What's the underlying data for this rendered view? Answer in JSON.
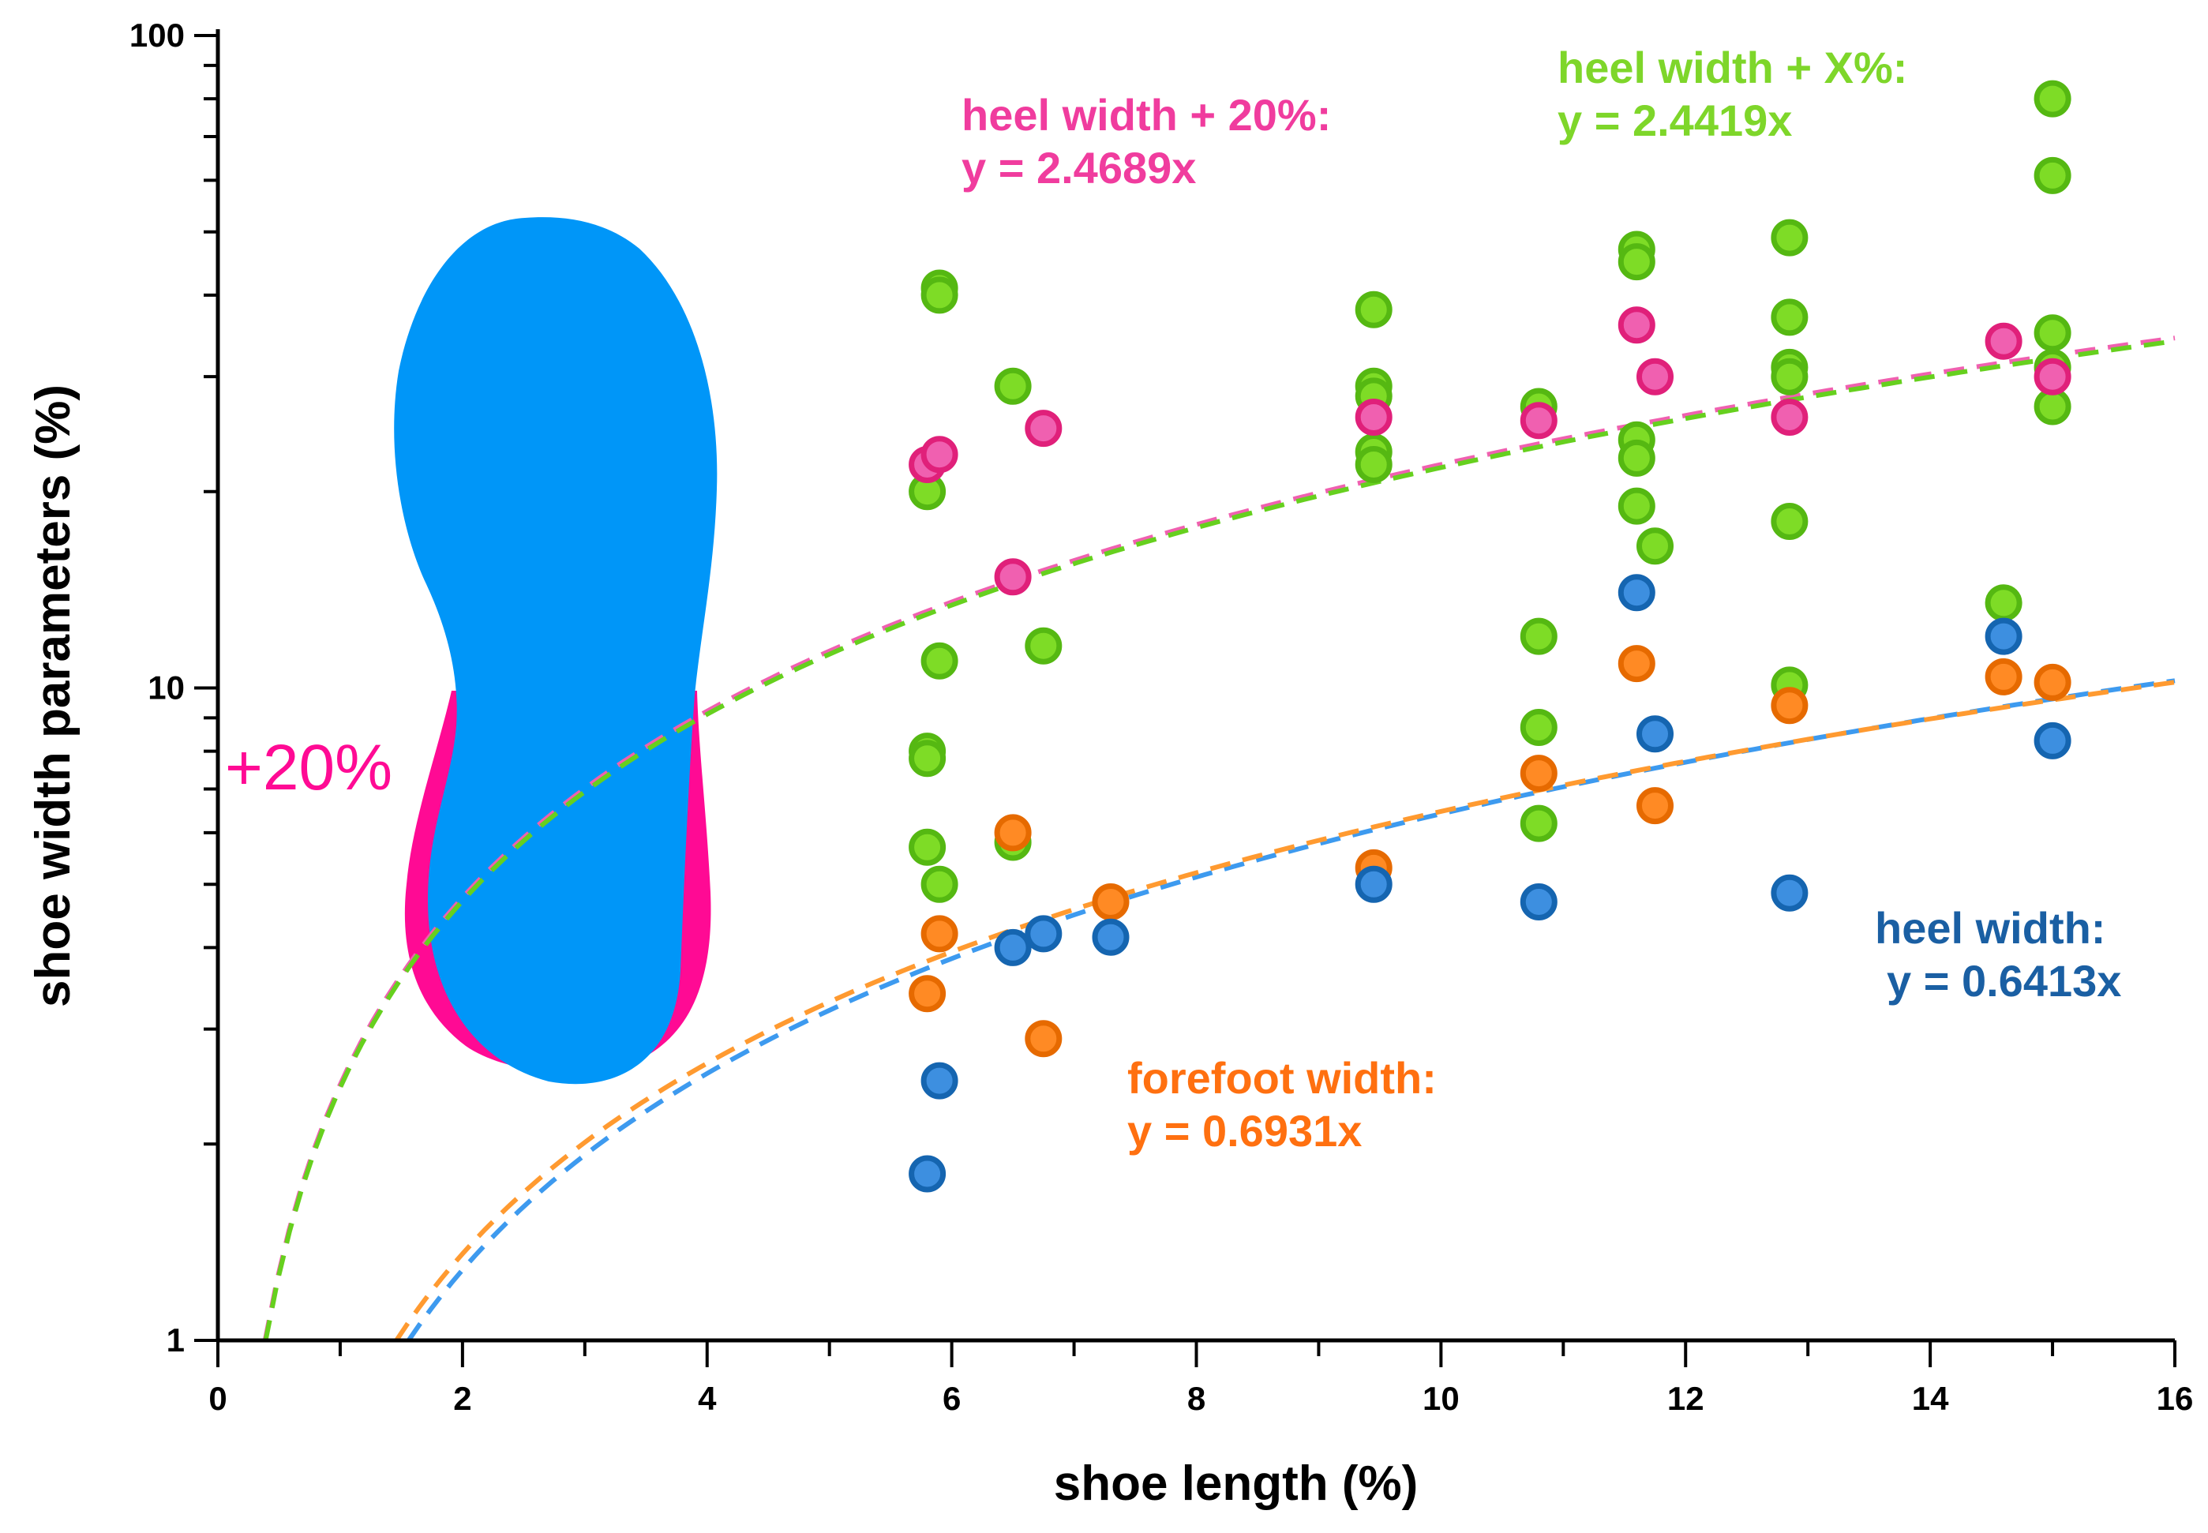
{
  "chart_data": {
    "type": "scatter",
    "xlabel": "shoe length (%)",
    "ylabel": "shoe width parameters (%)",
    "xlim": [
      0,
      16
    ],
    "ylim": [
      1,
      100
    ],
    "yscale": "log",
    "x_ticks": [
      0,
      2,
      4,
      6,
      8,
      10,
      12,
      14,
      16
    ],
    "y_ticks": [
      1,
      10,
      100
    ],
    "colors": {
      "heel_width": "#3d8fe0",
      "forefoot_width": "#ff8a24",
      "heel_plus_20": "#f060b0",
      "heel_plus_x": "#7edc26",
      "insole_fill": "#0096f8",
      "insole_rim": "#ff0a94"
    },
    "series": [
      {
        "key": "heel_width",
        "name": "heel width",
        "equation": "y = 0.6413x",
        "label_line1": "heel width:",
        "label_line2": "y = 0.6413x",
        "fill": "#3d8fe0",
        "stroke": "#1565b0",
        "label_color": "#1a5fa3",
        "trend_color": "#3d9aef",
        "points": [
          [
            5.8,
            1.8
          ],
          [
            5.9,
            2.5
          ],
          [
            6.5,
            4.0
          ],
          [
            6.75,
            4.2
          ],
          [
            7.3,
            4.15
          ],
          [
            9.45,
            5.0
          ],
          [
            10.8,
            4.7
          ],
          [
            11.6,
            14.0
          ],
          [
            11.75,
            8.5
          ],
          [
            12.85,
            4.85
          ],
          [
            14.6,
            12.0
          ],
          [
            15.0,
            8.3
          ]
        ]
      },
      {
        "key": "forefoot_width",
        "name": "forefoot width",
        "equation": "y = 0.6931x",
        "label_line1": "forefoot width:",
        "label_line2": "y = 0.6931x",
        "fill": "#ff8a24",
        "stroke": "#e66a00",
        "label_color": "#ff7010",
        "trend_color": "#ff9a30",
        "points": [
          [
            5.8,
            3.4
          ],
          [
            5.9,
            4.2
          ],
          [
            6.5,
            6.0
          ],
          [
            6.75,
            2.9
          ],
          [
            7.3,
            4.7
          ],
          [
            9.45,
            5.3
          ],
          [
            10.8,
            7.4
          ],
          [
            11.6,
            10.9
          ],
          [
            11.75,
            6.6
          ],
          [
            12.85,
            9.4
          ],
          [
            14.6,
            10.4
          ],
          [
            15.0,
            10.2
          ]
        ]
      },
      {
        "key": "heel_plus_20",
        "name": "heel width + 20%",
        "equation": "y = 2.4689x",
        "label_line1": "heel width + 20%:",
        "label_line2": "y = 2.4689x",
        "fill": "#f060b0",
        "stroke": "#e0207a",
        "label_color": "#f03c9e",
        "trend_color": "#f060b0",
        "points": [
          [
            5.8,
            22.0
          ],
          [
            5.9,
            22.8
          ],
          [
            6.5,
            14.8
          ],
          [
            6.75,
            25.0
          ],
          [
            9.45,
            26.0
          ],
          [
            10.8,
            25.7
          ],
          [
            11.6,
            36.0
          ],
          [
            11.75,
            30.0
          ],
          [
            12.85,
            26.0
          ],
          [
            14.6,
            34.0
          ],
          [
            15.0,
            30.0
          ]
        ]
      },
      {
        "key": "heel_plus_x",
        "name": "heel width + X%",
        "equation": "y = 2.4419x",
        "label_line1": "heel width + X%:",
        "label_line2": "y = 2.4419x",
        "fill": "#7edc26",
        "stroke": "#55b812",
        "label_color": "#7ed62a",
        "trend_color": "#66d01e",
        "points": [
          [
            5.8,
            20.0
          ],
          [
            5.8,
            8.0
          ],
          [
            5.8,
            7.8
          ],
          [
            5.8,
            5.7
          ],
          [
            5.9,
            41.0
          ],
          [
            5.9,
            40.0
          ],
          [
            5.9,
            11.0
          ],
          [
            5.9,
            5.0
          ],
          [
            6.5,
            29.0
          ],
          [
            6.5,
            5.8
          ],
          [
            6.75,
            11.6
          ],
          [
            9.45,
            38.0
          ],
          [
            9.45,
            29.0
          ],
          [
            9.45,
            28.0
          ],
          [
            9.45,
            23.0
          ],
          [
            9.45,
            22.0
          ],
          [
            10.8,
            27.0
          ],
          [
            10.8,
            12.0
          ],
          [
            10.8,
            8.7
          ],
          [
            10.8,
            6.2
          ],
          [
            11.6,
            47.0
          ],
          [
            11.6,
            45.0
          ],
          [
            11.6,
            24.0
          ],
          [
            11.6,
            22.5
          ],
          [
            11.6,
            19.0
          ],
          [
            11.75,
            16.5
          ],
          [
            12.85,
            49.0
          ],
          [
            12.85,
            37.0
          ],
          [
            12.85,
            31.0
          ],
          [
            12.85,
            30.0
          ],
          [
            12.85,
            18.0
          ],
          [
            12.85,
            10.1
          ],
          [
            14.6,
            13.5
          ],
          [
            15.0,
            80.0
          ],
          [
            15.0,
            61.0
          ],
          [
            15.0,
            35.0
          ],
          [
            15.0,
            31.0
          ],
          [
            15.0,
            27.0
          ]
        ]
      }
    ],
    "insole_label": "+20%"
  }
}
